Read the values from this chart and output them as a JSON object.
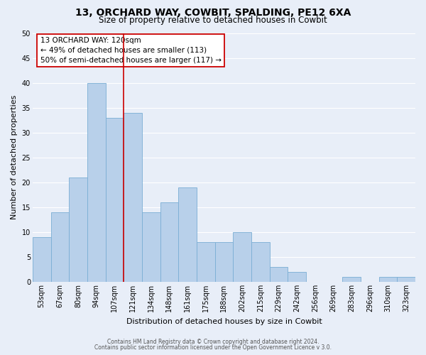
{
  "title": "13, ORCHARD WAY, COWBIT, SPALDING, PE12 6XA",
  "subtitle": "Size of property relative to detached houses in Cowbit",
  "xlabel": "Distribution of detached houses by size in Cowbit",
  "ylabel": "Number of detached properties",
  "bar_labels": [
    "53sqm",
    "67sqm",
    "80sqm",
    "94sqm",
    "107sqm",
    "121sqm",
    "134sqm",
    "148sqm",
    "161sqm",
    "175sqm",
    "188sqm",
    "202sqm",
    "215sqm",
    "229sqm",
    "242sqm",
    "256sqm",
    "269sqm",
    "283sqm",
    "296sqm",
    "310sqm",
    "323sqm"
  ],
  "bar_values": [
    9,
    14,
    21,
    40,
    33,
    34,
    14,
    16,
    19,
    8,
    8,
    10,
    8,
    3,
    2,
    0,
    0,
    1,
    0,
    1,
    1
  ],
  "bar_color": "#b8d0ea",
  "bar_edge_color": "#7aaed4",
  "vline_color": "#cc0000",
  "vline_x_index": 4.5,
  "ylim": [
    0,
    50
  ],
  "annotation_title": "13 ORCHARD WAY: 120sqm",
  "annotation_line1": "← 49% of detached houses are smaller (113)",
  "annotation_line2": "50% of semi-detached houses are larger (117) →",
  "annotation_box_color": "#ffffff",
  "annotation_box_edge": "#cc0000",
  "footer1": "Contains HM Land Registry data © Crown copyright and database right 2024.",
  "footer2": "Contains public sector information licensed under the Open Government Licence v 3.0.",
  "bg_color": "#e8eef8",
  "plot_bg_color": "#e8eef8",
  "grid_color": "#ffffff",
  "title_fontsize": 10,
  "subtitle_fontsize": 8.5,
  "tick_fontsize": 7,
  "ylabel_fontsize": 8,
  "xlabel_fontsize": 8,
  "annotation_fontsize": 7.5,
  "footer_fontsize": 5.5
}
